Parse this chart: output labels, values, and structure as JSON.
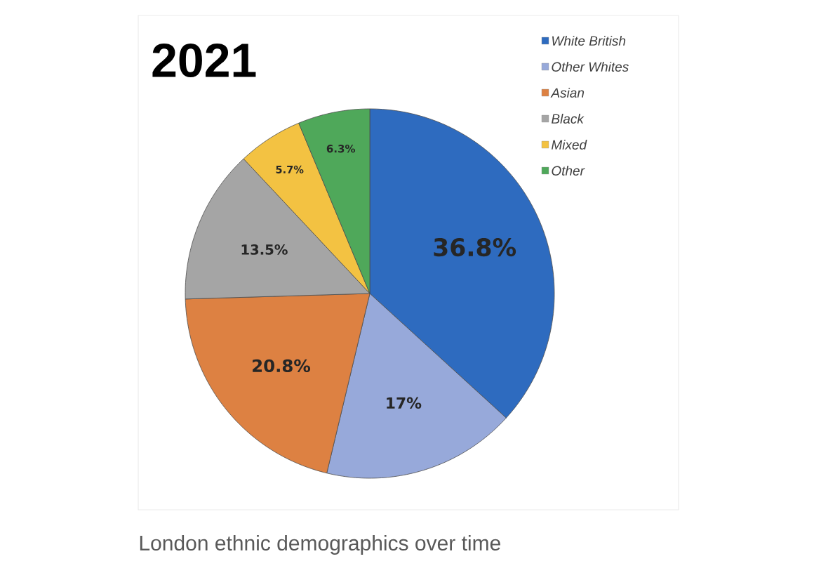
{
  "chart_data": {
    "type": "pie",
    "title": "2021",
    "categories": [
      "White British",
      "Other Whites",
      "Asian",
      "Black",
      "Mixed",
      "Other"
    ],
    "values": [
      36.8,
      17,
      20.8,
      13.5,
      5.7,
      6.3
    ],
    "value_labels": [
      "36.8%",
      "17%",
      "20.8%",
      "13.5%",
      "5.7%",
      "6.3%"
    ],
    "colors": [
      "#2e6bbf",
      "#97a9da",
      "#dd8142",
      "#a5a5a5",
      "#f3c242",
      "#4fa85a"
    ],
    "legend": "top right",
    "annotations": [
      "London ethnic demographics over time"
    ]
  }
}
